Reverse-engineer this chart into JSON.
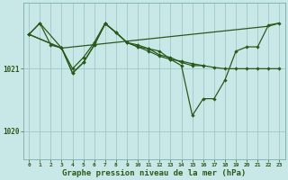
{
  "background_color": "#c8e8e8",
  "grid_color": "#a0c8c8",
  "line_color": "#2a5a1a",
  "xlabel": "Graphe pression niveau de la mer (hPa)",
  "xlabel_fontsize": 6.5,
  "ylabel_ticks": [
    1020,
    1021
  ],
  "xlim": [
    -0.5,
    23.5
  ],
  "ylim": [
    1019.55,
    1022.05
  ],
  "series": {
    "line1_x": [
      0,
      1,
      2,
      3,
      4,
      5,
      6,
      7,
      8,
      9,
      10,
      11,
      12,
      13,
      14,
      15,
      16,
      17,
      18,
      19,
      20,
      21,
      22,
      23
    ],
    "line1_y": [
      1021.55,
      1021.73,
      1021.38,
      1021.33,
      1020.93,
      1021.1,
      1021.38,
      1021.72,
      1021.58,
      1021.42,
      1021.35,
      1021.32,
      1021.28,
      1021.15,
      1021.12,
      1021.08,
      1021.05,
      1021.02,
      1021.0,
      1021.0,
      1021.0,
      1021.0,
      1021.0,
      1021.0
    ],
    "line2_x": [
      0,
      1,
      3,
      4,
      5,
      6,
      7,
      8,
      9,
      10,
      11,
      12,
      13,
      14,
      15,
      16,
      17,
      18,
      19,
      20,
      21,
      22,
      23
    ],
    "line2_y": [
      1021.55,
      1021.73,
      1021.33,
      1020.93,
      1021.1,
      1021.38,
      1021.72,
      1021.58,
      1021.42,
      1021.35,
      1021.28,
      1021.2,
      1021.15,
      1021.05,
      1020.25,
      1020.52,
      1020.52,
      1020.82,
      1021.28,
      1021.35,
      1021.35,
      1021.7,
      1021.73
    ],
    "line3_x": [
      0,
      3,
      4,
      5,
      6,
      7,
      9,
      10,
      11,
      12,
      13,
      14,
      15,
      16
    ],
    "line3_y": [
      1021.55,
      1021.33,
      1021.0,
      1021.18,
      1021.42,
      1021.73,
      1021.42,
      1021.38,
      1021.32,
      1021.22,
      1021.18,
      1021.1,
      1021.05,
      1021.05
    ],
    "line4_x": [
      0,
      3,
      22,
      23
    ],
    "line4_y": [
      1021.55,
      1021.33,
      1021.68,
      1021.73
    ]
  }
}
